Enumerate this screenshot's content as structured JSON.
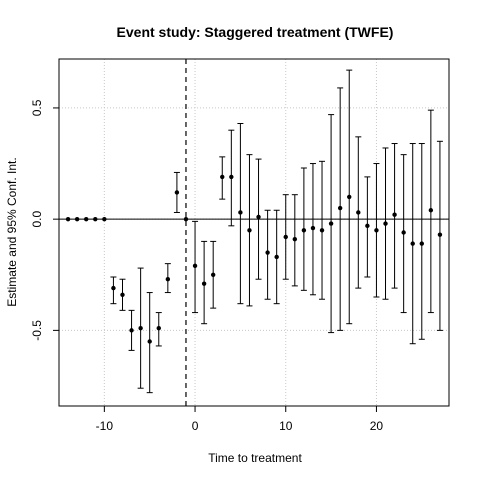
{
  "chart_data": {
    "type": "scatter",
    "title": "Event study: Staggered treatment (TWFE)",
    "xlabel": "Time to treatment",
    "ylabel": "Estimate and 95% Conf. Int.",
    "xlim": [
      -15,
      28
    ],
    "ylim": [
      -0.84,
      0.72
    ],
    "xticks": [
      -10,
      0,
      10,
      20
    ],
    "xtick_labels": [
      "-10",
      "0",
      "10",
      "20"
    ],
    "yticks": [
      -0.5,
      0.0,
      0.5
    ],
    "ytick_labels": [
      "-0.5",
      "0.0",
      "0.5"
    ],
    "grid": true,
    "reference_vline": -1,
    "reference_hline": 0,
    "points": [
      {
        "x": -14,
        "y": 0.0,
        "lo": null,
        "hi": null
      },
      {
        "x": -13,
        "y": 0.0,
        "lo": null,
        "hi": null
      },
      {
        "x": -12,
        "y": 0.0,
        "lo": null,
        "hi": null
      },
      {
        "x": -11,
        "y": 0.0,
        "lo": null,
        "hi": null
      },
      {
        "x": -10,
        "y": 0.0,
        "lo": null,
        "hi": null
      },
      {
        "x": -9,
        "y": -0.31,
        "lo": -0.38,
        "hi": -0.26
      },
      {
        "x": -8,
        "y": -0.34,
        "lo": -0.41,
        "hi": -0.27
      },
      {
        "x": -7,
        "y": -0.5,
        "lo": -0.59,
        "hi": -0.41
      },
      {
        "x": -6,
        "y": -0.49,
        "lo": -0.76,
        "hi": -0.22
      },
      {
        "x": -5,
        "y": -0.55,
        "lo": -0.78,
        "hi": -0.33
      },
      {
        "x": -4,
        "y": -0.49,
        "lo": -0.57,
        "hi": -0.42
      },
      {
        "x": -3,
        "y": -0.27,
        "lo": -0.33,
        "hi": -0.2
      },
      {
        "x": -2,
        "y": 0.12,
        "lo": 0.03,
        "hi": 0.21
      },
      {
        "x": -1,
        "y": 0.0,
        "lo": null,
        "hi": null
      },
      {
        "x": 0,
        "y": -0.21,
        "lo": -0.42,
        "hi": -0.01
      },
      {
        "x": 1,
        "y": -0.29,
        "lo": -0.47,
        "hi": -0.1
      },
      {
        "x": 2,
        "y": -0.25,
        "lo": -0.4,
        "hi": -0.1
      },
      {
        "x": 3,
        "y": 0.19,
        "lo": 0.09,
        "hi": 0.28
      },
      {
        "x": 4,
        "y": 0.19,
        "lo": -0.03,
        "hi": 0.4
      },
      {
        "x": 5,
        "y": 0.03,
        "lo": -0.38,
        "hi": 0.43
      },
      {
        "x": 6,
        "y": -0.05,
        "lo": -0.39,
        "hi": 0.29
      },
      {
        "x": 7,
        "y": 0.01,
        "lo": -0.27,
        "hi": 0.27
      },
      {
        "x": 8,
        "y": -0.15,
        "lo": -0.36,
        "hi": 0.04
      },
      {
        "x": 9,
        "y": -0.17,
        "lo": -0.38,
        "hi": 0.04
      },
      {
        "x": 10,
        "y": -0.08,
        "lo": -0.27,
        "hi": 0.11
      },
      {
        "x": 11,
        "y": -0.09,
        "lo": -0.3,
        "hi": 0.11
      },
      {
        "x": 12,
        "y": -0.05,
        "lo": -0.32,
        "hi": 0.23
      },
      {
        "x": 13,
        "y": -0.04,
        "lo": -0.34,
        "hi": 0.25
      },
      {
        "x": 14,
        "y": -0.05,
        "lo": -0.36,
        "hi": 0.26
      },
      {
        "x": 15,
        "y": -0.02,
        "lo": -0.51,
        "hi": 0.47
      },
      {
        "x": 16,
        "y": 0.05,
        "lo": -0.5,
        "hi": 0.59
      },
      {
        "x": 17,
        "y": 0.1,
        "lo": -0.47,
        "hi": 0.67
      },
      {
        "x": 18,
        "y": 0.03,
        "lo": -0.31,
        "hi": 0.37
      },
      {
        "x": 19,
        "y": -0.03,
        "lo": -0.26,
        "hi": 0.19
      },
      {
        "x": 20,
        "y": -0.05,
        "lo": -0.35,
        "hi": 0.25
      },
      {
        "x": 21,
        "y": -0.02,
        "lo": -0.36,
        "hi": 0.32
      },
      {
        "x": 22,
        "y": 0.02,
        "lo": -0.31,
        "hi": 0.34
      },
      {
        "x": 23,
        "y": -0.06,
        "lo": -0.42,
        "hi": 0.29
      },
      {
        "x": 24,
        "y": -0.11,
        "lo": -0.56,
        "hi": 0.34
      },
      {
        "x": 25,
        "y": -0.11,
        "lo": -0.54,
        "hi": 0.34
      },
      {
        "x": 26,
        "y": 0.04,
        "lo": -0.42,
        "hi": 0.49
      },
      {
        "x": 27,
        "y": -0.07,
        "lo": -0.5,
        "hi": 0.35
      }
    ]
  }
}
